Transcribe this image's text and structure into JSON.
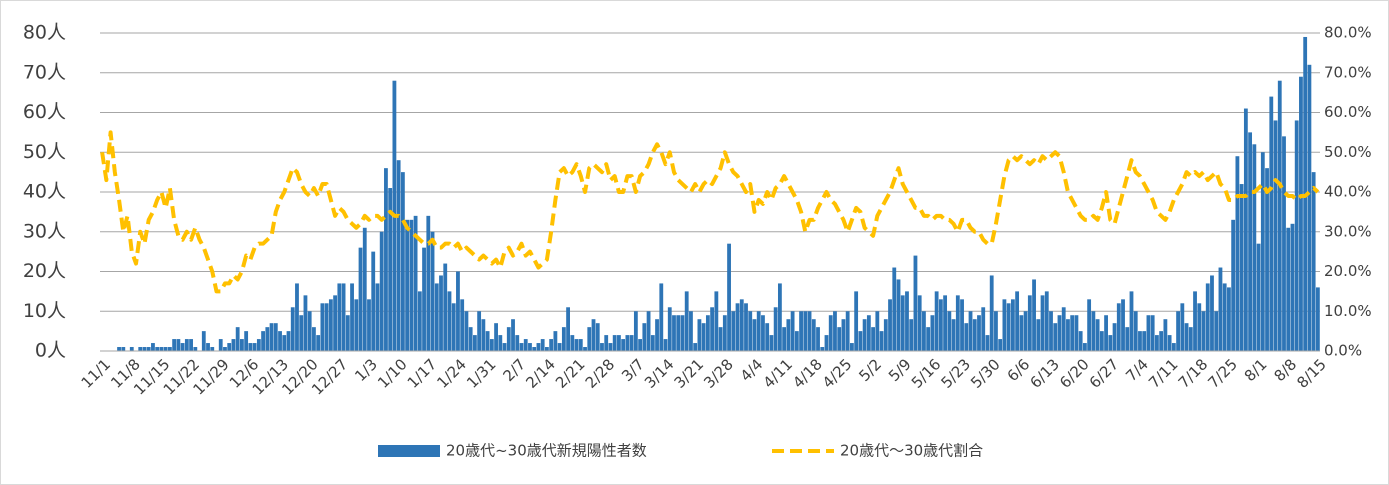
{
  "chart_data": {
    "type": "bar",
    "categories": [
      "11/1",
      null,
      null,
      null,
      null,
      null,
      null,
      "11/8",
      null,
      null,
      null,
      null,
      null,
      null,
      "11/15",
      null,
      null,
      null,
      null,
      null,
      null,
      "11/22",
      null,
      null,
      null,
      null,
      null,
      null,
      "11/29",
      null,
      null,
      null,
      null,
      null,
      null,
      "12/6",
      null,
      null,
      null,
      null,
      null,
      null,
      "12/13",
      null,
      null,
      null,
      null,
      null,
      null,
      "12/20",
      null,
      null,
      null,
      null,
      null,
      null,
      "12/27",
      null,
      null,
      null,
      null,
      null,
      null,
      "1/3",
      null,
      null,
      null,
      null,
      null,
      null,
      "1/10",
      null,
      null,
      null,
      null,
      null,
      null,
      "1/17",
      null,
      null,
      null,
      null,
      null,
      null,
      "1/24",
      null,
      null,
      null,
      null,
      null,
      null,
      "1/31",
      null,
      null,
      null,
      null,
      null,
      null,
      "2/7",
      null,
      null,
      null,
      null,
      null,
      null,
      "2/14",
      null,
      null,
      null,
      null,
      null,
      null,
      "2/21",
      null,
      null,
      null,
      null,
      null,
      null,
      "2/28",
      null,
      null,
      null,
      null,
      null,
      null,
      "3/7",
      null,
      null,
      null,
      null,
      null,
      null,
      "3/14",
      null,
      null,
      null,
      null,
      null,
      null,
      "3/21",
      null,
      null,
      null,
      null,
      null,
      null,
      "3/28",
      null,
      null,
      null,
      null,
      null,
      null,
      "4/4",
      null,
      null,
      null,
      null,
      null,
      null,
      "4/11",
      null,
      null,
      null,
      null,
      null,
      null,
      "4/18",
      null,
      null,
      null,
      null,
      null,
      null,
      "4/25",
      null,
      null,
      null,
      null,
      null,
      null,
      "5/2",
      null,
      null,
      null,
      null,
      null,
      null,
      "5/9",
      null,
      null,
      null,
      null,
      null,
      null,
      "5/16",
      null,
      null,
      null,
      null,
      null,
      null,
      "5/23",
      null,
      null,
      null,
      null,
      null,
      null,
      "5/30",
      null,
      null,
      null,
      null,
      null,
      null,
      "6/6",
      null,
      null,
      null,
      null,
      null,
      null,
      "6/13",
      null,
      null,
      null,
      null,
      null,
      null,
      "6/20",
      null,
      null,
      null,
      null,
      null,
      null,
      "6/27",
      null,
      null,
      null,
      null,
      null,
      null,
      "7/4",
      null,
      null,
      null,
      null,
      null,
      null,
      "7/11",
      null,
      null,
      null,
      null,
      null,
      null,
      "7/18",
      null,
      null,
      null,
      null,
      null,
      null,
      "7/25",
      null,
      null,
      null,
      null,
      null,
      null,
      "8/1",
      null,
      null,
      null,
      null,
      null,
      null,
      "8/8",
      null,
      null,
      null,
      null,
      null,
      null,
      "8/15"
    ],
    "series": [
      {
        "name": "20歳代~30歳代新規陽性者数",
        "type": "bar",
        "color": "#2e75b6",
        "values": [
          0,
          0,
          0,
          0,
          1,
          1,
          0,
          1,
          0,
          1,
          1,
          1,
          2,
          1,
          1,
          1,
          1,
          3,
          3,
          2,
          3,
          3,
          1,
          0,
          5,
          2,
          1,
          0,
          3,
          1,
          2,
          3,
          6,
          3,
          5,
          2,
          2,
          3,
          5,
          6,
          7,
          7,
          5,
          4,
          5,
          11,
          17,
          9,
          14,
          10,
          6,
          4,
          12,
          12,
          13,
          14,
          17,
          17,
          9,
          17,
          13,
          26,
          31,
          13,
          25,
          17,
          30,
          46,
          41,
          68,
          48,
          45,
          33,
          33,
          34,
          15,
          26,
          34,
          30,
          17,
          19,
          22,
          15,
          12,
          20,
          13,
          10,
          6,
          4,
          10,
          8,
          5,
          3,
          7,
          4,
          2,
          6,
          8,
          4,
          2,
          3,
          2,
          1,
          2,
          3,
          1,
          3,
          5,
          2,
          6,
          11,
          4,
          3,
          3,
          1,
          6,
          8,
          7,
          2,
          4,
          2,
          4,
          4,
          3,
          4,
          4,
          10,
          3,
          7,
          10,
          4,
          8,
          17,
          3,
          11,
          9,
          9,
          9,
          15,
          10,
          2,
          8,
          7,
          9,
          11,
          15,
          6,
          9,
          27,
          10,
          12,
          13,
          12,
          10,
          8,
          10,
          9,
          7,
          4,
          11,
          17,
          6,
          8,
          10,
          5,
          10,
          10,
          10,
          8,
          6,
          1,
          4,
          9,
          10,
          6,
          8,
          10,
          2,
          15,
          5,
          8,
          9,
          6,
          10,
          5,
          8,
          13,
          21,
          18,
          14,
          15,
          8,
          24,
          14,
          10,
          6,
          9,
          15,
          13,
          14,
          10,
          8,
          14,
          13,
          7,
          10,
          8,
          9,
          11,
          4,
          19,
          10,
          3,
          13,
          12,
          13,
          15,
          9,
          10,
          14,
          18,
          8,
          14,
          15,
          10,
          7,
          9,
          11,
          8,
          9,
          9,
          5,
          2,
          13,
          10,
          8,
          5,
          9,
          4,
          7,
          12,
          13,
          6,
          15,
          10,
          5,
          5,
          9,
          9,
          4,
          5,
          8,
          4,
          2,
          10,
          12,
          7,
          6,
          15,
          12,
          10,
          17,
          19,
          10,
          21,
          17,
          16,
          33,
          49,
          42,
          61,
          55,
          52,
          27,
          50,
          46,
          64,
          58,
          68,
          54,
          31,
          32,
          58,
          69,
          79,
          72,
          45,
          16
        ]
      },
      {
        "name": "20歳代～30歳代割合",
        "type": "line",
        "axis": "y2",
        "color": "#ffc000",
        "dashed": true,
        "values": [
          50,
          43,
          55,
          45,
          38,
          30,
          34,
          25,
          22,
          30,
          27,
          33,
          35,
          38,
          40,
          36,
          41,
          33,
          29,
          28,
          30,
          28,
          31,
          28,
          26,
          23,
          20,
          15,
          15,
          17,
          17,
          19,
          18,
          20,
          24,
          23,
          26,
          27,
          27,
          28,
          29,
          35,
          38,
          40,
          43,
          46,
          45,
          42,
          40,
          39,
          41,
          39,
          42,
          42,
          38,
          34,
          36,
          35,
          33,
          32,
          31,
          32,
          34,
          33,
          34,
          34,
          33,
          34,
          35,
          34,
          34,
          33,
          31,
          30,
          29,
          28,
          27,
          27,
          28,
          26,
          26,
          27,
          27,
          26,
          27,
          25,
          26,
          25,
          24,
          23,
          24,
          23,
          22,
          23,
          21,
          25,
          26,
          24,
          25,
          27,
          24,
          25,
          23,
          21,
          22,
          23,
          30,
          38,
          45,
          46,
          44,
          45,
          47,
          44,
          40,
          46,
          47,
          46,
          45,
          47,
          43,
          44,
          40,
          40,
          44,
          44,
          40,
          44,
          45,
          47,
          50,
          52,
          50,
          47,
          50,
          45,
          43,
          42,
          41,
          40,
          42,
          40,
          42,
          43,
          42,
          44,
          46,
          50,
          47,
          45,
          44,
          42,
          40,
          42,
          35,
          38,
          37,
          40,
          38,
          41,
          42,
          44,
          42,
          40,
          38,
          35,
          30,
          33,
          33,
          36,
          38,
          40,
          38,
          37,
          35,
          33,
          30,
          33,
          36,
          35,
          31,
          30,
          29,
          34,
          36,
          38,
          40,
          43,
          46,
          42,
          40,
          38,
          36,
          36,
          34,
          34,
          33,
          34,
          34,
          33,
          33,
          32,
          30,
          33,
          33,
          31,
          30,
          30,
          28,
          27,
          27,
          32,
          38,
          44,
          48,
          49,
          48,
          49,
          48,
          47,
          48,
          47,
          49,
          48,
          49,
          50,
          49,
          45,
          40,
          38,
          36,
          34,
          33,
          33,
          34,
          33,
          36,
          40,
          33,
          32,
          36,
          40,
          44,
          48,
          45,
          44,
          42,
          40,
          38,
          35,
          34,
          33,
          35,
          38,
          40,
          42,
          45,
          44,
          45,
          44,
          45,
          43,
          44,
          45,
          42,
          41,
          38,
          38,
          39,
          39,
          39,
          40,
          40,
          41,
          42,
          40,
          41,
          43,
          42,
          40,
          39,
          39,
          38,
          39,
          39,
          40,
          41,
          40
        ]
      }
    ],
    "ylim": [
      0,
      80
    ],
    "yticks": [
      {
        "value": 0,
        "label": "0人"
      },
      {
        "value": 10,
        "label": "10人"
      },
      {
        "value": 20,
        "label": "20人"
      },
      {
        "value": 30,
        "label": "30人"
      },
      {
        "value": 40,
        "label": "40人"
      },
      {
        "value": 50,
        "label": "50人"
      },
      {
        "value": 60,
        "label": "60人"
      },
      {
        "value": 70,
        "label": "70人"
      },
      {
        "value": 80,
        "label": "80人"
      }
    ],
    "y2lim": [
      0,
      80
    ],
    "y2ticks": [
      {
        "value": 0,
        "label": "0.0%"
      },
      {
        "value": 10,
        "label": "10.0%"
      },
      {
        "value": 20,
        "label": "20.0%"
      },
      {
        "value": 30,
        "label": "30.0%"
      },
      {
        "value": 40,
        "label": "40.0%"
      },
      {
        "value": 50,
        "label": "50.0%"
      },
      {
        "value": 60,
        "label": "60.0%"
      },
      {
        "value": 70,
        "label": "70.0%"
      },
      {
        "value": 80,
        "label": "80.0%"
      }
    ],
    "grid": true,
    "legend": "bottom"
  }
}
